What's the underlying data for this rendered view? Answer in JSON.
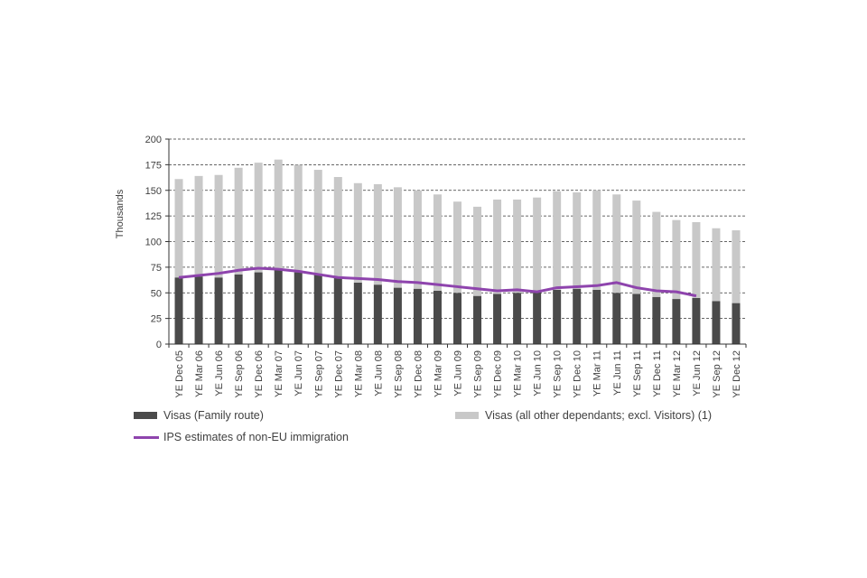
{
  "chart_data": {
    "type": "bar",
    "stacked": true,
    "ylabel": "Thousands",
    "ylim": [
      0,
      200
    ],
    "yticks": [
      0,
      25,
      50,
      75,
      100,
      125,
      150,
      175,
      200
    ],
    "grid": "horizontal dashed",
    "categories": [
      "YE Dec 05",
      "YE Mar 06",
      "YE Jun 06",
      "YE Sep 06",
      "YE Dec 06",
      "YE Mar 07",
      "YE Jun 07",
      "YE Sep 07",
      "YE Dec 07",
      "YE Mar 08",
      "YE Jun 08",
      "YE Sep 08",
      "YE Dec 08",
      "YE Mar 09",
      "YE Jun 09",
      "YE Sep 09",
      "YE Dec 09",
      "YE Mar 10",
      "YE Jun 10",
      "YE Sep 10",
      "YE Dec 10",
      "YE Mar 11",
      "YE Jun 11",
      "YE Sep 11",
      "YE Dec 11",
      "YE Mar 12",
      "YE Jun 12",
      "YE Sep 12",
      "YE Dec 12"
    ],
    "series": [
      {
        "name": "Visas (Family route)",
        "kind": "bar",
        "color": "#4a4a4a",
        "values": [
          65,
          66,
          65,
          68,
          70,
          73,
          70,
          68,
          65,
          60,
          58,
          55,
          54,
          52,
          50,
          47,
          49,
          50,
          51,
          53,
          54,
          53,
          50,
          49,
          46,
          44,
          45,
          42,
          40
        ]
      },
      {
        "name": "Visas (all other dependants; excl. Visitors) (1)",
        "kind": "bar",
        "color": "#c8c8c8",
        "values": [
          96,
          98,
          100,
          104,
          107,
          107,
          105,
          102,
          98,
          97,
          98,
          98,
          96,
          94,
          89,
          87,
          92,
          91,
          92,
          96,
          94,
          97,
          96,
          91,
          83,
          77,
          74,
          71,
          71
        ]
      },
      {
        "name": "IPS estimates of non-EU immigration",
        "kind": "line",
        "color": "#8e44ad",
        "values": [
          65,
          67,
          69,
          72,
          74,
          73,
          71,
          68,
          65,
          64,
          63,
          61,
          60,
          58,
          56,
          54,
          52,
          53,
          51,
          55,
          56,
          57,
          60,
          55,
          52,
          51,
          47,
          null,
          null
        ]
      }
    ]
  }
}
